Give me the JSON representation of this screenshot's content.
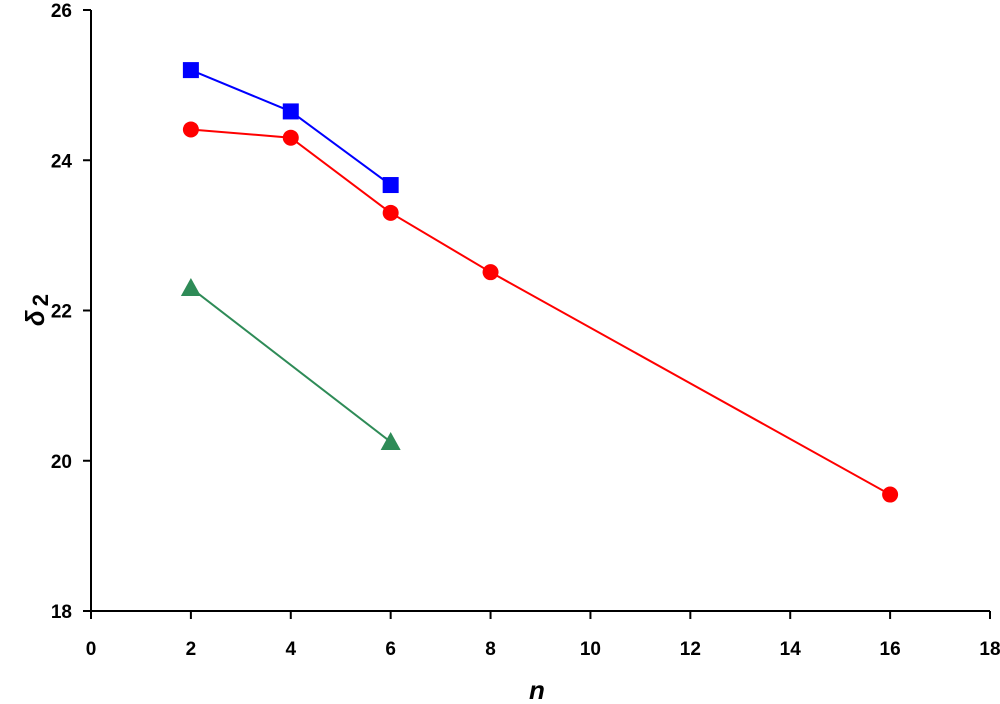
{
  "chart_data": {
    "type": "line",
    "title": "",
    "xlabel": "n",
    "ylabel": "δ",
    "ylabel_sub": "2",
    "xlim": [
      0,
      18
    ],
    "ylim": [
      18,
      26
    ],
    "xticks": [
      0,
      2,
      4,
      6,
      8,
      10,
      12,
      14,
      16,
      18
    ],
    "yticks": [
      18,
      20,
      22,
      24,
      26
    ],
    "grid": false,
    "legend": "none",
    "series": [
      {
        "color": "#0000ff",
        "marker": "square",
        "x": [
          2,
          4,
          6
        ],
        "y": [
          25.2,
          24.65,
          23.67
        ]
      },
      {
        "color": "#ff0000",
        "marker": "circle",
        "x": [
          2,
          4,
          6,
          8,
          16
        ],
        "y": [
          24.41,
          24.3,
          23.3,
          22.51,
          19.55
        ]
      },
      {
        "color": "#2e8b57",
        "marker": "triangle",
        "x": [
          2,
          6
        ],
        "y": [
          22.3,
          20.25
        ]
      }
    ]
  }
}
